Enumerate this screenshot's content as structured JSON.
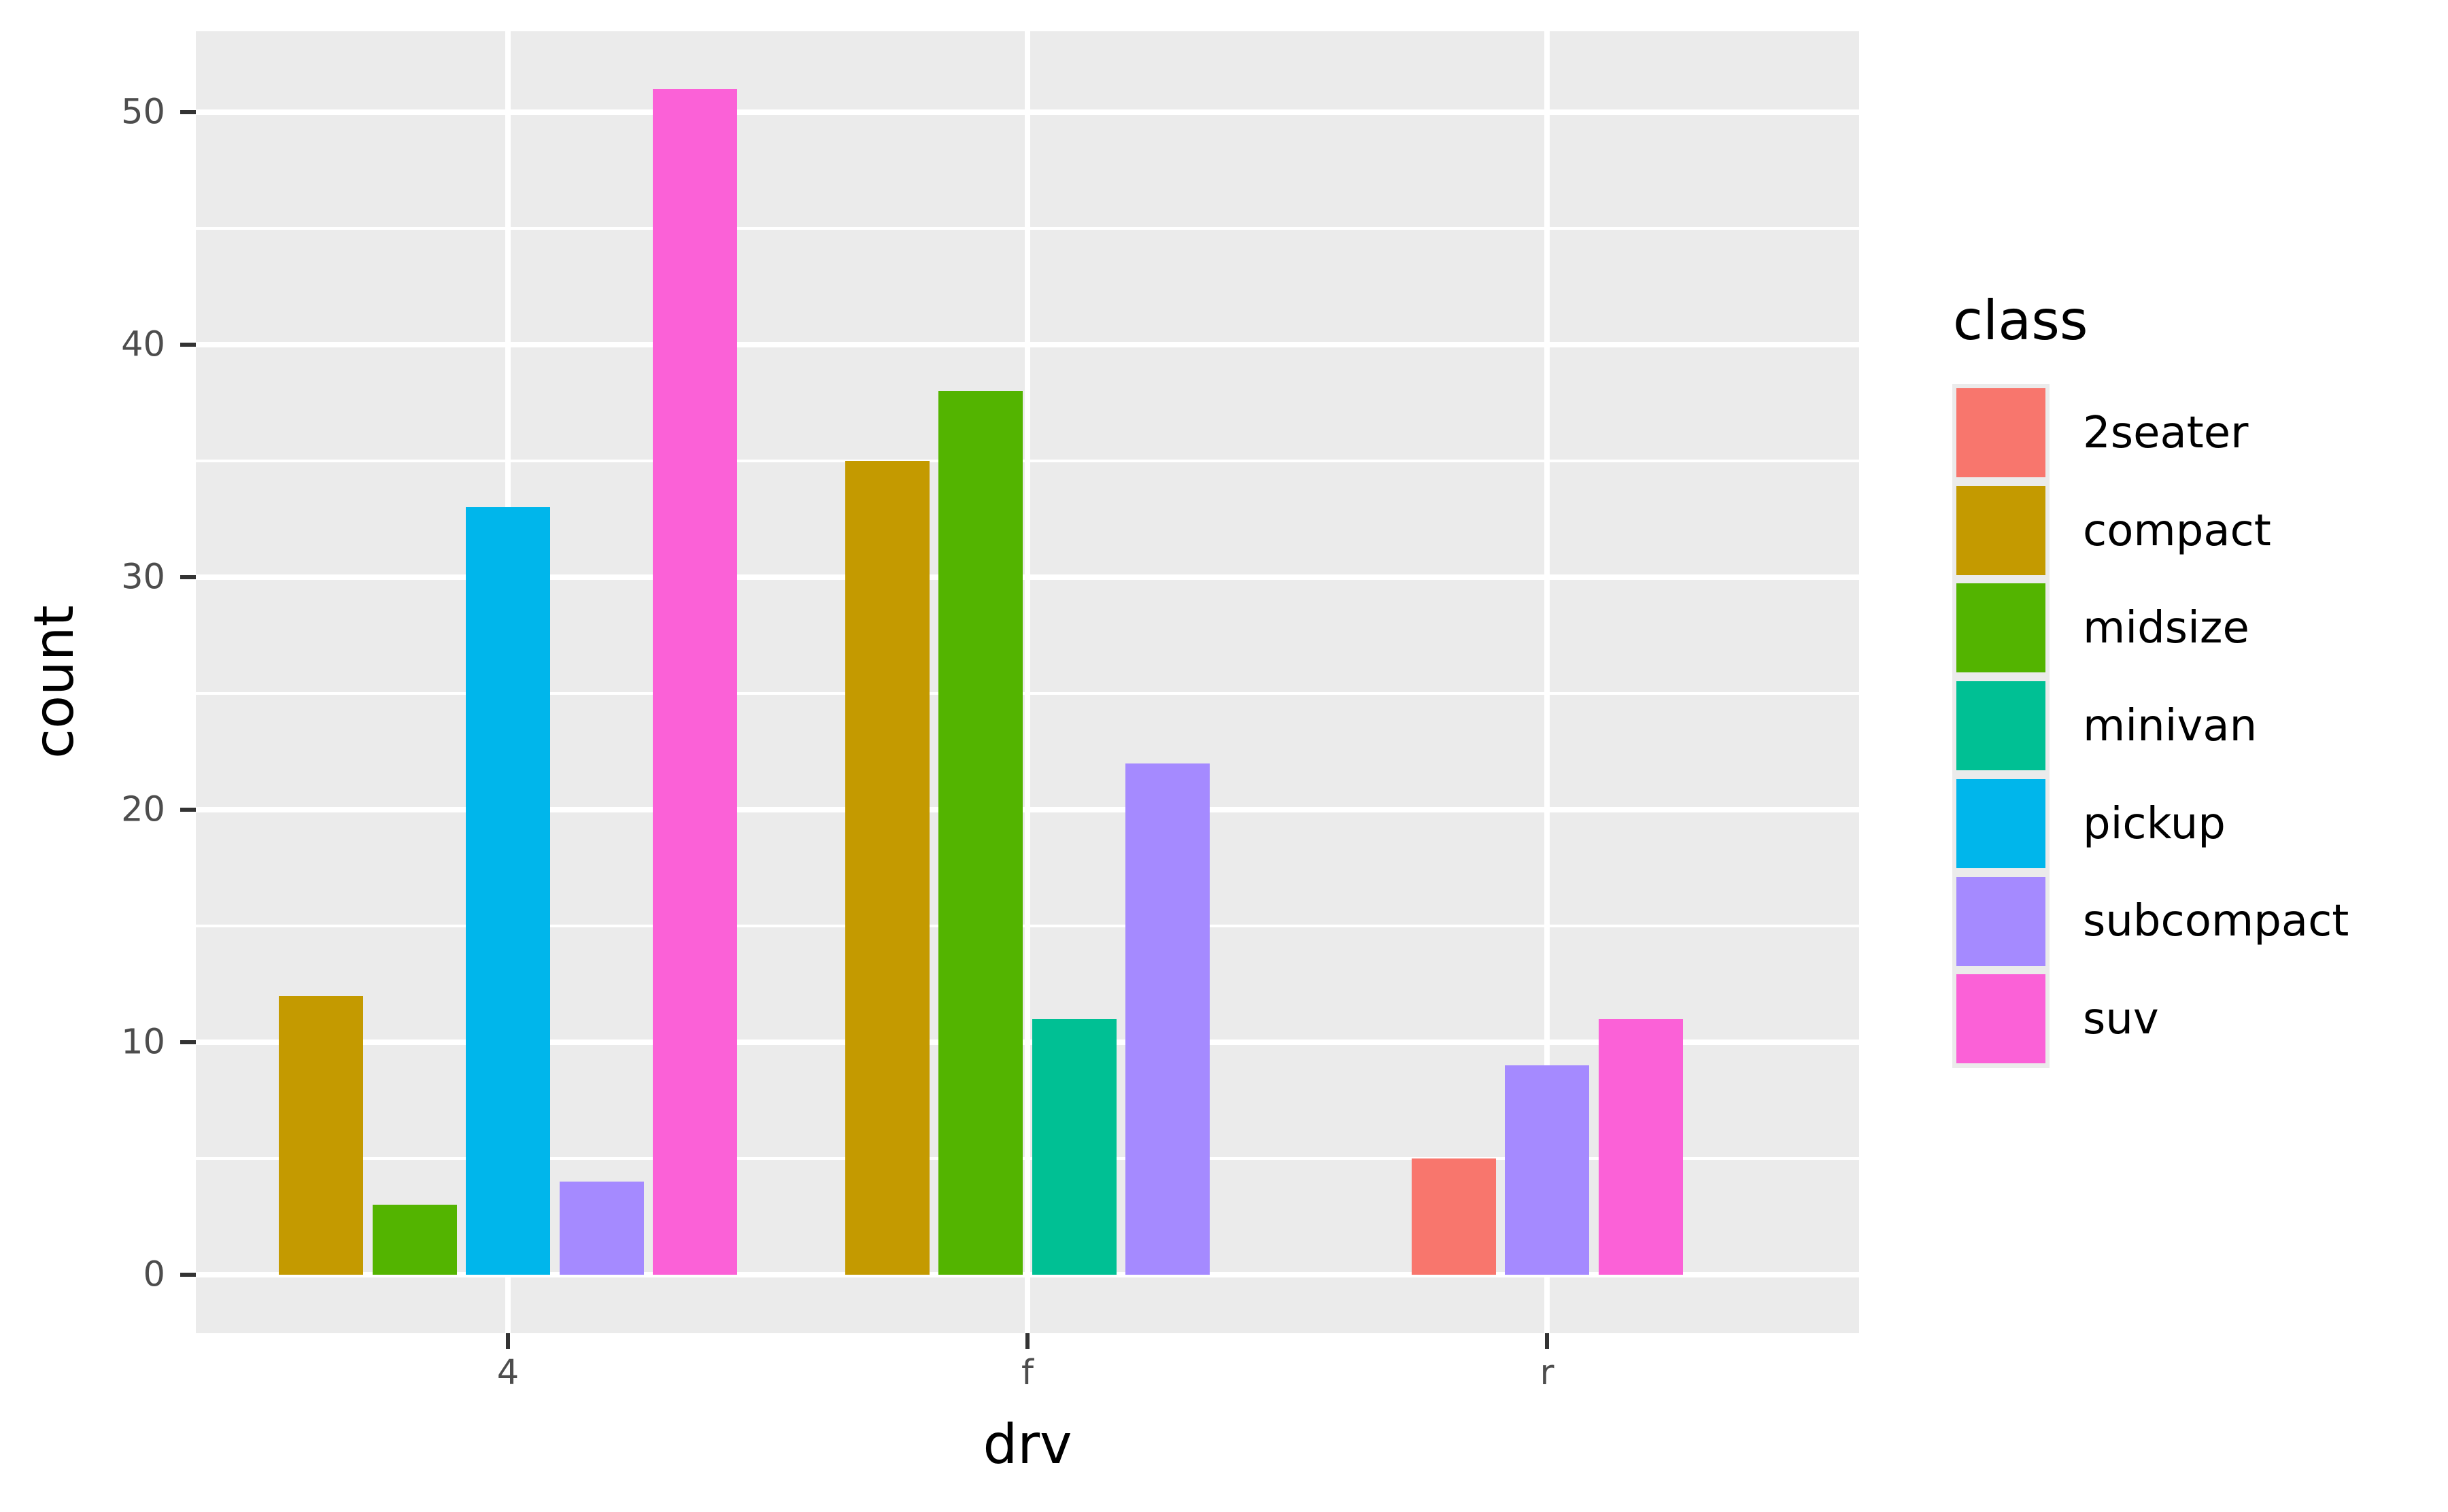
{
  "chart_data": {
    "type": "bar",
    "title": "",
    "xlabel": "drv",
    "ylabel": "count",
    "categories": [
      "4",
      "f",
      "r"
    ],
    "ylim": [
      -2.55,
      53.55
    ],
    "y_ticks": [
      0,
      10,
      20,
      30,
      40,
      50
    ],
    "grid": true,
    "legend_position": "right",
    "legend_title": "class",
    "position": "dodge (preserve single)",
    "series": [
      {
        "name": "2seater",
        "color": "#F8766D",
        "values": [
          null,
          null,
          5
        ]
      },
      {
        "name": "compact",
        "color": "#C49A00",
        "values": [
          12,
          35,
          null
        ]
      },
      {
        "name": "midsize",
        "color": "#53B400",
        "values": [
          3,
          38,
          null
        ]
      },
      {
        "name": "minivan",
        "color": "#00C094",
        "values": [
          null,
          11,
          null
        ]
      },
      {
        "name": "pickup",
        "color": "#00B6EB",
        "values": [
          33,
          null,
          null
        ]
      },
      {
        "name": "subcompact",
        "color": "#A58AFF",
        "values": [
          4,
          22,
          9
        ]
      },
      {
        "name": "suv",
        "color": "#FB61D7",
        "values": [
          51,
          null,
          11
        ]
      }
    ]
  },
  "axes": {
    "x_title": "drv",
    "y_title": "count",
    "x_tick_labels": [
      "4",
      "f",
      "r"
    ],
    "y_tick_labels": [
      "0",
      "10",
      "20",
      "30",
      "40",
      "50"
    ]
  },
  "legend": {
    "title": "class",
    "items": [
      {
        "label": "2seater",
        "color": "#F8766D"
      },
      {
        "label": "compact",
        "color": "#C49A00"
      },
      {
        "label": "midsize",
        "color": "#53B400"
      },
      {
        "label": "minivan",
        "color": "#00C094"
      },
      {
        "label": "pickup",
        "color": "#00B6EB"
      },
      {
        "label": "subcompact",
        "color": "#A58AFF"
      },
      {
        "label": "suv",
        "color": "#FB61D7"
      }
    ]
  },
  "colors": {
    "panel_background": "#EBEBEB",
    "gridline": "#FFFFFF",
    "tick_text": "#4D4D4D",
    "tick_mark": "#333333"
  }
}
